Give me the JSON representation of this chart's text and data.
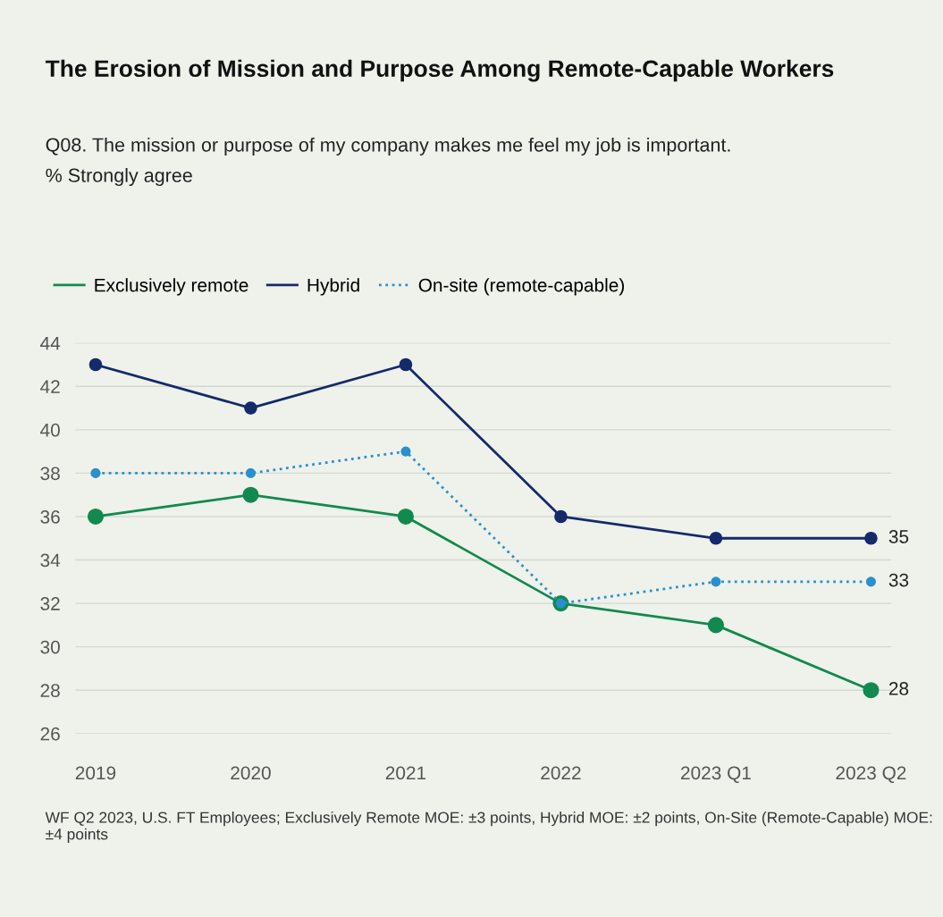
{
  "chart_data": {
    "type": "line",
    "title": "The Erosion of Mission and Purpose Among Remote-Capable Workers",
    "subtitle": "Q08. The mission or purpose of my company makes me feel my job is important.\n% Strongly agree",
    "categories": [
      "2019",
      "2020",
      "2021",
      "2022",
      "2023 Q1",
      "2023 Q2"
    ],
    "series": [
      {
        "name": "Exclusively remote",
        "color": "#12894f",
        "line_style": "solid",
        "values": [
          36,
          37,
          36,
          32,
          31,
          28
        ],
        "value_labels": [
          null,
          null,
          null,
          null,
          null,
          "28"
        ]
      },
      {
        "name": "Hybrid",
        "color": "#152a6b",
        "line_style": "solid",
        "values": [
          43,
          41,
          43,
          36,
          35,
          35
        ],
        "value_labels": [
          null,
          null,
          null,
          null,
          null,
          "35"
        ]
      },
      {
        "name": "On-site (remote-capable)",
        "color": "#2b8fcb",
        "line_style": "dotted",
        "values": [
          38,
          38,
          39,
          32,
          33,
          33
        ],
        "value_labels": [
          null,
          null,
          null,
          null,
          null,
          "33"
        ]
      }
    ],
    "ylim": [
      26,
      44
    ],
    "yticks": [
      26,
      28,
      30,
      32,
      34,
      36,
      38,
      40,
      42,
      44
    ],
    "grid": "y",
    "legend": "top left",
    "marker": "circle",
    "annotations": [
      "WF Q2 2023, U.S. FT Employees; Exclusively Remote MOE: ±3 points, Hybrid MOE: ±2 points, On-Site (Remote-Capable) MOE: ±4 points"
    ]
  }
}
